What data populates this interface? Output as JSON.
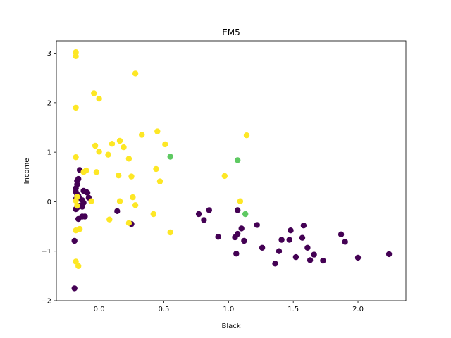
{
  "chart_data": {
    "type": "scatter",
    "title": "EM5",
    "xlabel": "Black",
    "ylabel": "Income",
    "xlim": [
      -0.33,
      2.37
    ],
    "ylim": [
      -2.0,
      3.25
    ],
    "xticks": [
      0.0,
      0.5,
      1.0,
      1.5,
      2.0
    ],
    "xtick_labels": [
      "0.0",
      "0.5",
      "1.0",
      "1.5",
      "2.0"
    ],
    "yticks": [
      -2,
      -1,
      0,
      1,
      2,
      3
    ],
    "ytick_labels": [
      "−2",
      "−1",
      "0",
      "1",
      "2",
      "3"
    ],
    "grid": false,
    "legend": "none",
    "colors": {
      "purple": "#440154",
      "yellow": "#fde725",
      "green": "#5ec962"
    },
    "series": [
      {
        "color_key": "purple",
        "points": [
          [
            -0.19,
            -1.75
          ],
          [
            -0.19,
            -0.79
          ],
          [
            -0.18,
            0.27
          ],
          [
            -0.17,
            0.35
          ],
          [
            -0.17,
            0.42
          ],
          [
            -0.16,
            0.46
          ],
          [
            -0.18,
            0.2
          ],
          [
            -0.17,
            0.15
          ],
          [
            -0.16,
            0.12
          ],
          [
            -0.18,
            0.05
          ],
          [
            -0.15,
            0.06
          ],
          [
            -0.13,
            0.03
          ],
          [
            -0.12,
            -0.02
          ],
          [
            -0.15,
            -0.08
          ],
          [
            -0.13,
            -0.1
          ],
          [
            -0.17,
            -0.12
          ],
          [
            -0.18,
            -0.15
          ],
          [
            -0.15,
            0.64
          ],
          [
            -0.12,
            0.22
          ],
          [
            -0.1,
            0.2
          ],
          [
            -0.09,
            0.18
          ],
          [
            -0.08,
            0.08
          ],
          [
            -0.13,
            -0.3
          ],
          [
            -0.11,
            -0.3
          ],
          [
            -0.16,
            -0.35
          ],
          [
            0.14,
            -0.19
          ],
          [
            0.25,
            -0.45
          ],
          [
            0.77,
            -0.25
          ],
          [
            0.81,
            -0.37
          ],
          [
            0.85,
            -0.17
          ],
          [
            0.92,
            -0.71
          ],
          [
            1.05,
            -0.72
          ],
          [
            1.07,
            -0.65
          ],
          [
            1.07,
            -0.17
          ],
          [
            1.06,
            -1.05
          ],
          [
            1.1,
            -0.54
          ],
          [
            1.12,
            -0.79
          ],
          [
            1.22,
            -0.47
          ],
          [
            1.26,
            -0.93
          ],
          [
            1.36,
            -1.25
          ],
          [
            1.39,
            -1.0
          ],
          [
            1.41,
            -0.77
          ],
          [
            1.47,
            -0.77
          ],
          [
            1.48,
            -0.58
          ],
          [
            1.52,
            -1.12
          ],
          [
            1.57,
            -0.73
          ],
          [
            1.58,
            -0.48
          ],
          [
            1.61,
            -0.93
          ],
          [
            1.63,
            -1.18
          ],
          [
            1.66,
            -1.07
          ],
          [
            1.73,
            -1.19
          ],
          [
            1.87,
            -0.66
          ],
          [
            1.9,
            -0.81
          ],
          [
            2.0,
            -1.13
          ],
          [
            2.24,
            -1.06
          ]
        ]
      },
      {
        "color_key": "yellow",
        "points": [
          [
            -0.18,
            3.02
          ],
          [
            -0.18,
            2.94
          ],
          [
            -0.18,
            1.9
          ],
          [
            -0.18,
            0.9
          ],
          [
            -0.17,
            0.1
          ],
          [
            -0.18,
            0.02
          ],
          [
            -0.17,
            -0.08
          ],
          [
            -0.18,
            -0.58
          ],
          [
            -0.15,
            -0.55
          ],
          [
            -0.18,
            -1.21
          ],
          [
            -0.16,
            -1.3
          ],
          [
            -0.12,
            0.6
          ],
          [
            -0.1,
            0.63
          ],
          [
            -0.06,
            0.01
          ],
          [
            -0.04,
            2.19
          ],
          [
            -0.03,
            1.13
          ],
          [
            -0.02,
            0.6
          ],
          [
            0.0,
            2.08
          ],
          [
            0.0,
            1.01
          ],
          [
            0.07,
            0.95
          ],
          [
            0.08,
            -0.36
          ],
          [
            0.1,
            1.17
          ],
          [
            0.15,
            0.53
          ],
          [
            0.16,
            0.01
          ],
          [
            0.16,
            1.23
          ],
          [
            0.19,
            1.1
          ],
          [
            0.23,
            0.87
          ],
          [
            0.23,
            -0.43
          ],
          [
            0.25,
            0.51
          ],
          [
            0.26,
            0.09
          ],
          [
            0.28,
            -0.07
          ],
          [
            0.28,
            2.59
          ],
          [
            0.33,
            1.35
          ],
          [
            0.42,
            -0.25
          ],
          [
            0.44,
            0.66
          ],
          [
            0.45,
            1.42
          ],
          [
            0.47,
            0.41
          ],
          [
            0.51,
            1.16
          ],
          [
            0.55,
            -0.62
          ],
          [
            0.97,
            0.52
          ],
          [
            1.09,
            0.01
          ],
          [
            1.14,
            1.34
          ]
        ]
      },
      {
        "color_key": "green",
        "points": [
          [
            0.55,
            0.91
          ],
          [
            1.07,
            0.84
          ],
          [
            1.13,
            -0.25
          ]
        ]
      }
    ]
  }
}
